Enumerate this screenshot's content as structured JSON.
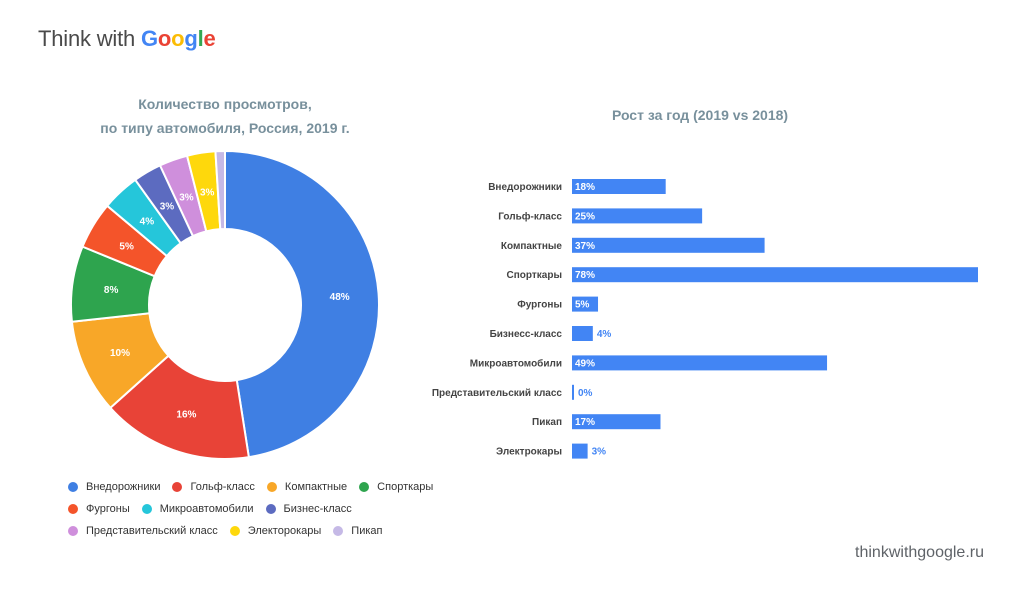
{
  "header": {
    "logo_prefix": "Think with ",
    "logo_letters": [
      "G",
      "o",
      "o",
      "g",
      "l",
      "e"
    ],
    "logo_colors": [
      "#4285f4",
      "#ea4335",
      "#fbbc05",
      "#4285f4",
      "#34a853",
      "#ea4335"
    ]
  },
  "footer": {
    "source": "thinkwithgoogle.ru"
  },
  "chart_data": [
    {
      "type": "pie",
      "title_lines": [
        "Количество просмотров,",
        "по типу автомобиля, Россия, 2019 г."
      ],
      "categories": [
        "Внедорожники",
        "Гольф-класс",
        "Компактные",
        "Спорткары",
        "Фургоны",
        "Микроавтомобили",
        "Бизнес-класс",
        "Представительский класс",
        "Электорокары",
        "Пикап"
      ],
      "values": [
        48,
        16,
        10,
        8,
        5,
        4,
        3,
        3,
        3,
        1
      ],
      "labels": [
        "48%",
        "16%",
        "10%",
        "8%",
        "5%",
        "4%",
        "3%",
        "3%",
        "3%",
        ""
      ],
      "colors": [
        "#3f7fe3",
        "#e84337",
        "#f8a728",
        "#2ea44e",
        "#f4542a",
        "#25c6da",
        "#5c6bc0",
        "#cf8fdc",
        "#fed80c",
        "#c5b9e6"
      ],
      "legend_position": "bottom",
      "legend_rows": [
        [
          0,
          1,
          2,
          3
        ],
        [
          4,
          5,
          6
        ],
        [
          7,
          8,
          9
        ]
      ]
    },
    {
      "type": "bar",
      "orientation": "horizontal",
      "title": "Рост за год (2019 vs 2018)",
      "categories": [
        "Внедорожники",
        "Гольф-класс",
        "Компактные",
        "Спорткары",
        "Фургоны",
        "Бизнесс-класс",
        "Микроавтомобили",
        "Представительский класс",
        "Пикап",
        "Электрокары"
      ],
      "values": [
        18,
        25,
        37,
        78,
        5,
        4,
        49,
        0,
        17,
        3
      ],
      "labels": [
        "18%",
        "25%",
        "37%",
        "78%",
        "5%",
        "4%",
        "49%",
        "0%",
        "17%",
        "3%"
      ],
      "color": "#4285f4",
      "xlim": [
        0,
        78
      ]
    }
  ]
}
